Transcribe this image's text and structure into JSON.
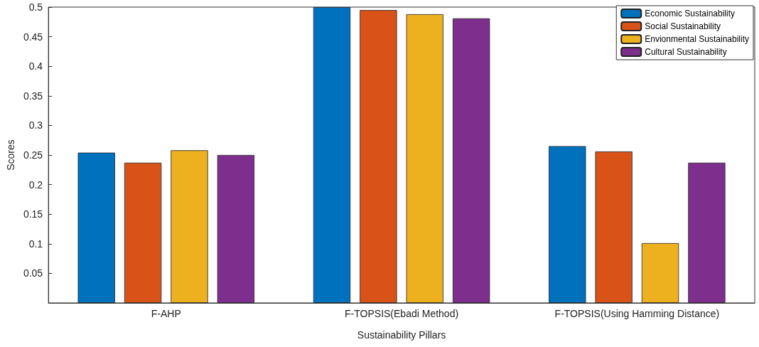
{
  "chart_data": {
    "type": "bar",
    "xlabel": "Sustainability Pillars",
    "ylabel": "Scores",
    "categories": [
      "F-AHP",
      "F-TOPSIS(Ebadi Method)",
      "F-TOPSIS(Using Hamming Distance)"
    ],
    "series": [
      {
        "name": "Economic Sustainability",
        "color": "#0072bd",
        "values": [
          0.254,
          0.5,
          0.265
        ]
      },
      {
        "name": "Social Sustainability",
        "color": "#d95319",
        "values": [
          0.237,
          0.495,
          0.256
        ]
      },
      {
        "name": "Envionmental Sustainability",
        "color": "#edb120",
        "values": [
          0.258,
          0.488,
          0.101
        ]
      },
      {
        "name": "Cultural Sustainability",
        "color": "#7e2f8e",
        "values": [
          0.25,
          0.481,
          0.237
        ]
      }
    ],
    "ylim": [
      0,
      0.5
    ],
    "yticks": [
      {
        "value": 0,
        "label": null
      },
      0.05,
      0.1,
      0.15,
      0.2,
      0.25,
      0.3,
      0.35,
      0.4,
      0.45,
      0.5
    ],
    "legend": "top right",
    "grid": false
  }
}
